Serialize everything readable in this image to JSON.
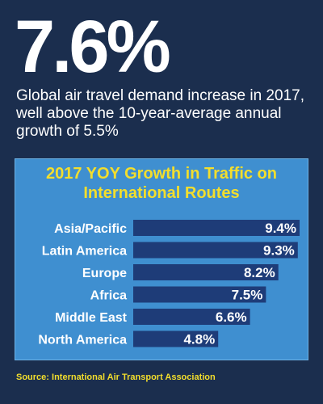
{
  "headline": {
    "stat": "7.6%",
    "description": "Global air travel demand increase in 2017, well above the 10-year-average annual growth of 5.5%"
  },
  "chart_data": {
    "type": "bar",
    "orientation": "horizontal",
    "title": "2017 YOY Growth in Traffic on International Routes",
    "categories": [
      "Asia/Pacific",
      "Latin America",
      "Europe",
      "Africa",
      "Middle East",
      "North America"
    ],
    "values": [
      9.4,
      9.3,
      8.2,
      7.5,
      6.6,
      4.8
    ],
    "value_labels": [
      "9.4%",
      "9.3%",
      "8.2%",
      "7.5%",
      "6.6%",
      "4.8%"
    ],
    "xlim": [
      0,
      9.4
    ],
    "grid": false,
    "legend": "none",
    "colors": {
      "bar": "#1e3c78",
      "panel": "#3f8fd0",
      "title": "#f3de2c",
      "label": "#ffffff"
    }
  },
  "footer": {
    "source": "Source: International Air Transport Association"
  }
}
